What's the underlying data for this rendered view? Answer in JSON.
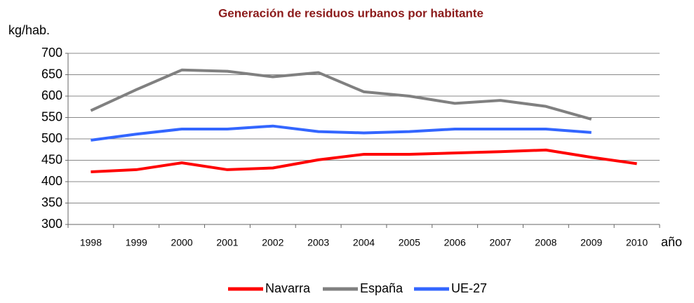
{
  "chart_data": {
    "type": "line",
    "title": "Generación de residuos urbanos por habitante",
    "y_label": "kg/hab.",
    "x_label": "año",
    "categories": [
      "1998",
      "1999",
      "2000",
      "2001",
      "2002",
      "2003",
      "2004",
      "2005",
      "2006",
      "2007",
      "2008",
      "2009",
      "2010"
    ],
    "series": [
      {
        "name": "Navarra",
        "color": "#ff0000",
        "values": [
          423,
          428,
          444,
          428,
          432,
          451,
          464,
          464,
          467,
          470,
          474,
          457,
          442
        ]
      },
      {
        "name": "España",
        "color": "#808080",
        "values": [
          566,
          615,
          661,
          658,
          645,
          655,
          610,
          600,
          583,
          590,
          576,
          546,
          null
        ]
      },
      {
        "name": "UE-27",
        "color": "#3366ff",
        "values": [
          497,
          511,
          523,
          523,
          530,
          517,
          514,
          517,
          523,
          523,
          523,
          515,
          null
        ]
      }
    ],
    "ylim": [
      300,
      700
    ],
    "yticks": [
      300,
      350,
      400,
      450,
      500,
      550,
      600,
      650,
      700
    ],
    "grid": true,
    "legend": "bottom"
  }
}
